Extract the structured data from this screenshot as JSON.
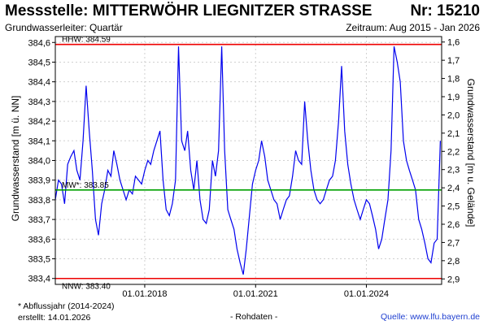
{
  "header": {
    "title": "Messstelle: MITTERWÖHR LIEGNITZER STRASSE",
    "number": "Nr: 15210",
    "aquifer": "Grundwasserleiter: Quartär",
    "period": "Zeitraum: Aug 2015 - Jan 2026"
  },
  "footer": {
    "note": "* Abflussjahr (2014-2024)",
    "created": "erstellt:  14.01.2026",
    "raw": "- Rohdaten -",
    "source": "Quelle: www.lfu.bayern.de"
  },
  "chart_data": {
    "type": "line",
    "ylabel": "Grundwasserstand [m ü. NN]",
    "ylabel_right": "Grundwasserstand [m u. Gelände]",
    "ylim": [
      383.37,
      384.63
    ],
    "yticks": [
      "383,4",
      "383,5",
      "383,6",
      "383,7",
      "383,8",
      "383,9",
      "384,0",
      "384,1",
      "384,2",
      "384,3",
      "384,4",
      "384,5",
      "384,6"
    ],
    "ylim_right": [
      1.57,
      2.93
    ],
    "yticks_right": [
      "1,6",
      "1,7",
      "1,8",
      "1,9",
      "2,0",
      "2,1",
      "2,2",
      "2,3",
      "2,4",
      "2,5",
      "2,6",
      "2,7",
      "2,8",
      "2,9"
    ],
    "xlim": [
      "2015-08-01",
      "2026-01-14"
    ],
    "xticks": [
      "01.01.2018",
      "01.01.2021",
      "01.01.2024"
    ],
    "grid": true,
    "colors": {
      "series": "#0000ee",
      "hhw": "#ee0000",
      "nnw": "#ee0000",
      "mw": "#00a000"
    },
    "reference_lines": [
      {
        "label": "HHW: 384.59",
        "value": 384.59
      },
      {
        "label": "MW*: 383.85",
        "value": 383.85
      },
      {
        "label": "NNW: 383.40",
        "value": 383.4
      }
    ],
    "series": [
      {
        "x": [
          "2015-08-01",
          "2015-09-01",
          "2015-10-01",
          "2015-11-01",
          "2015-12-01",
          "2016-01-01",
          "2016-02-01",
          "2016-03-01",
          "2016-04-01",
          "2016-05-01",
          "2016-06-01",
          "2016-07-01",
          "2016-08-01",
          "2016-09-01",
          "2016-10-01",
          "2016-11-01",
          "2016-12-01",
          "2017-01-01",
          "2017-02-01",
          "2017-03-01",
          "2017-04-01",
          "2017-05-01",
          "2017-06-01",
          "2017-07-01",
          "2017-08-01",
          "2017-09-01",
          "2017-10-01",
          "2017-11-01",
          "2017-12-01",
          "2018-01-01",
          "2018-02-01",
          "2018-03-01",
          "2018-04-01",
          "2018-05-01",
          "2018-06-01",
          "2018-07-01",
          "2018-08-01",
          "2018-09-01",
          "2018-10-01",
          "2018-11-01",
          "2018-12-01",
          "2019-01-01",
          "2019-02-01",
          "2019-03-01",
          "2019-04-01",
          "2019-05-01",
          "2019-06-01",
          "2019-07-01",
          "2019-08-01",
          "2019-09-01",
          "2019-10-01",
          "2019-11-01",
          "2019-12-01",
          "2020-01-01",
          "2020-02-01",
          "2020-03-01",
          "2020-04-01",
          "2020-05-01",
          "2020-06-01",
          "2020-07-01",
          "2020-08-01",
          "2020-09-01",
          "2020-10-01",
          "2020-11-01",
          "2020-12-01",
          "2021-01-01",
          "2021-02-01",
          "2021-03-01",
          "2021-04-01",
          "2021-05-01",
          "2021-06-01",
          "2021-07-01",
          "2021-08-01",
          "2021-09-01",
          "2021-10-01",
          "2021-11-01",
          "2021-12-01",
          "2022-01-01",
          "2022-02-01",
          "2022-03-01",
          "2022-04-01",
          "2022-05-01",
          "2022-06-01",
          "2022-07-01",
          "2022-08-01",
          "2022-09-01",
          "2022-10-01",
          "2022-11-01",
          "2022-12-01",
          "2023-01-01",
          "2023-02-01",
          "2023-03-01",
          "2023-04-01",
          "2023-05-01",
          "2023-06-01",
          "2023-07-01",
          "2023-08-01",
          "2023-09-01",
          "2023-10-01",
          "2023-11-01",
          "2023-12-01",
          "2024-01-01",
          "2024-02-01",
          "2024-03-01",
          "2024-04-01",
          "2024-05-01",
          "2024-06-01",
          "2024-07-01",
          "2024-08-01",
          "2024-09-01",
          "2024-10-01",
          "2024-11-01",
          "2024-12-01",
          "2025-01-01",
          "2025-02-01",
          "2025-03-01",
          "2025-04-01",
          "2025-05-01",
          "2025-06-01",
          "2025-07-01",
          "2025-08-01",
          "2025-09-01",
          "2025-10-01",
          "2025-11-01",
          "2025-12-01",
          "2026-01-01"
        ],
        "y": [
          383.8,
          383.9,
          383.88,
          383.78,
          383.98,
          384.02,
          384.05,
          383.95,
          383.9,
          384.1,
          384.38,
          384.15,
          383.95,
          383.7,
          383.62,
          383.78,
          383.85,
          383.95,
          383.92,
          384.05,
          383.98,
          383.9,
          383.85,
          383.8,
          383.85,
          383.83,
          383.92,
          383.9,
          383.88,
          383.95,
          384.0,
          383.98,
          384.05,
          384.1,
          384.15,
          383.9,
          383.75,
          383.72,
          383.78,
          383.9,
          384.58,
          384.1,
          384.05,
          384.15,
          383.95,
          383.85,
          384.0,
          383.8,
          383.7,
          383.68,
          383.75,
          384.0,
          383.92,
          384.05,
          384.58,
          384.05,
          383.75,
          383.7,
          383.65,
          383.55,
          383.48,
          383.42,
          383.55,
          383.72,
          383.88,
          383.95,
          384.0,
          384.1,
          384.02,
          383.9,
          383.85,
          383.8,
          383.78,
          383.7,
          383.75,
          383.8,
          383.82,
          383.92,
          384.05,
          384.0,
          383.98,
          384.3,
          384.1,
          383.95,
          383.85,
          383.8,
          383.78,
          383.8,
          383.85,
          383.9,
          383.92,
          384.0,
          384.2,
          384.48,
          384.15,
          383.98,
          383.88,
          383.8,
          383.75,
          383.7,
          383.75,
          383.8,
          383.78,
          383.72,
          383.65,
          383.55,
          383.6,
          383.7,
          383.8,
          384.05,
          384.58,
          384.5,
          384.4,
          384.1,
          384.0,
          383.95,
          383.9,
          383.85,
          383.7,
          383.65,
          383.58,
          383.5,
          383.48,
          383.58,
          383.6,
          384.1
        ]
      }
    ]
  }
}
